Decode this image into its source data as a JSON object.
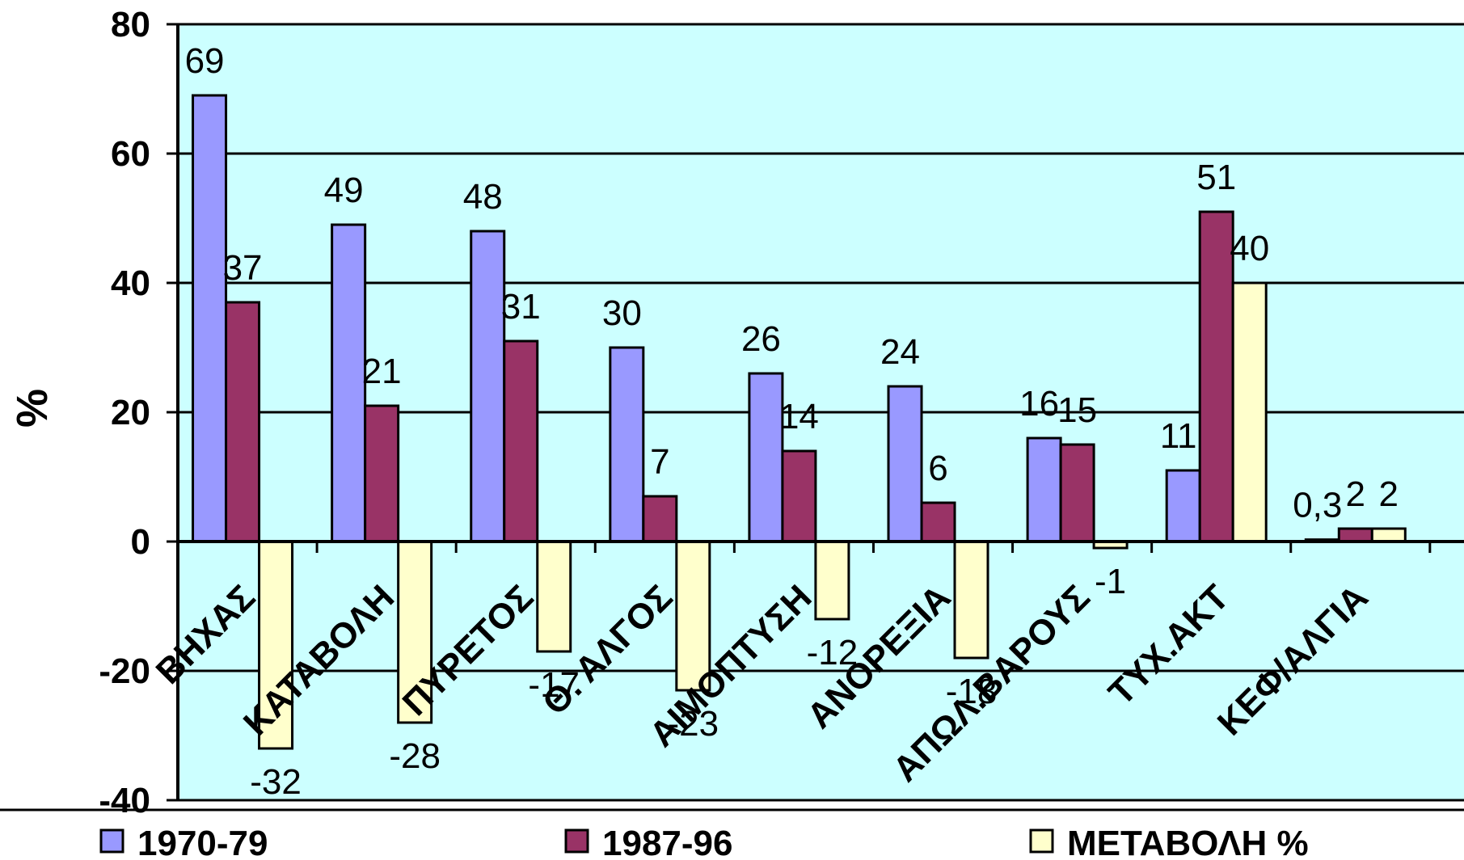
{
  "chart_data": {
    "type": "bar",
    "ylabel": "%",
    "ylim": [
      -40,
      80
    ],
    "yticks": [
      "-40",
      "-20",
      "0",
      "20",
      "40",
      "60",
      "80"
    ],
    "grid": true,
    "legend_position": "bottom",
    "categories": [
      "ΒΗΧΑΣ",
      "ΚΑΤΑΒΟΛΗ",
      "ΠΥΡΕΤΟΣ",
      "Θ. ΑΛΓΟΣ",
      "ΑΙΜΟΠΤΥΣΗ",
      "ΑΝΟΡΕΞΙΑ",
      "ΑΠΩΛ.ΒΑΡΟΥΣ",
      "ΤΥΧ.ΑΚΤ",
      "ΚΕΦ/ΑΛΓΙΑ"
    ],
    "series": [
      {
        "name": "1970-79",
        "color": "#9999ff",
        "values": [
          69,
          49,
          48,
          30,
          26,
          24,
          16,
          11,
          0.3
        ],
        "labels": [
          "69",
          "49",
          "48",
          "30",
          "26",
          "24",
          "16",
          "11",
          "0,3"
        ]
      },
      {
        "name": "1987-96",
        "color": "#993366",
        "values": [
          37,
          21,
          31,
          7,
          14,
          6,
          15,
          51,
          2
        ],
        "labels": [
          "37",
          "21",
          "31",
          "7",
          "14",
          "6",
          "15",
          "51",
          "2"
        ]
      },
      {
        "name": "ΜΕΤΑΒΟΛΗ %",
        "color": "#ffffcc",
        "values": [
          -32,
          -28,
          -17,
          -23,
          -12,
          -18,
          -1,
          40,
          2
        ],
        "labels": [
          "-32",
          "-28",
          "-17",
          "-23",
          "-12",
          "-18",
          "-1",
          "40",
          "2"
        ]
      }
    ],
    "plot_background": "#ccffff"
  }
}
